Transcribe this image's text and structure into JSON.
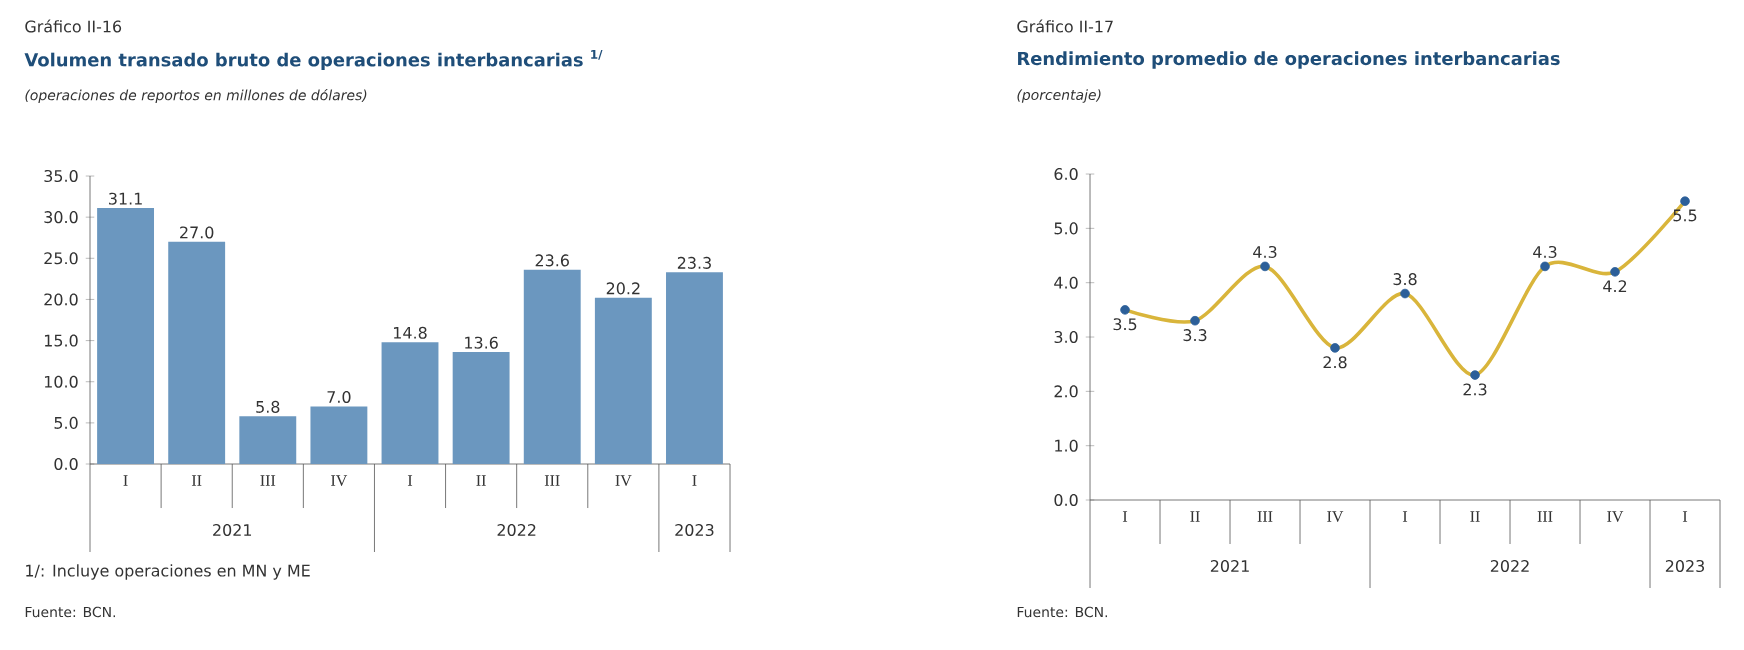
{
  "chart_data": [
    {
      "type": "bar",
      "title": "Volumen transado bruto de operaciones interbancarias $^{1/}$",
      "subtitle": "(operaciones de reportos en millones de dólares)",
      "categories": [
        "I",
        "II",
        "III",
        "IV",
        "I",
        "II",
        "III",
        "IV",
        "I"
      ],
      "values": [
        31.1,
        27.0,
        5.8,
        7.0,
        14.8,
        13.6,
        23.6,
        20.2,
        23.3
      ],
      "color": "#6b97bf",
      "value_labels": [
        "31.1",
        "27.0",
        "5.8",
        "7.0",
        "14.8",
        "13.6",
        "23.6",
        "20.2",
        "23.3"
      ],
      "ylim": [
        0,
        35
      ],
      "yticks": [
        {
          "value": 0,
          "label": "0.0"
        },
        {
          "value": 5,
          "label": "5.0"
        },
        {
          "value": 10,
          "label": "10.0"
        },
        {
          "value": 15,
          "label": "15.0"
        },
        {
          "value": 20,
          "label": "20.0"
        },
        {
          "value": 25,
          "label": "25.0"
        },
        {
          "value": 30,
          "label": "30.0"
        },
        {
          "value": 35,
          "label": "35.0"
        }
      ],
      "annotations": [
        "Gráfico II-16",
        "2021",
        "2022",
        "2023",
        "1/: Incluye operaciones en MN y ME",
        "Fuente: BCN."
      ]
    },
    {
      "type": "line",
      "title": "Rendimiento promedio de operaciones interbancarias",
      "subtitle": "(porcentaje)",
      "categories": [
        "I",
        "II",
        "III",
        "IV",
        "I",
        "II",
        "III",
        "IV",
        "I"
      ],
      "series": [
        {
          "color": "#d9b53b",
          "colors": [
            "#2c5f99",
            "#2c5f99",
            "#2c5f99",
            "#2c5f99",
            "#2c5f99",
            "#2c5f99",
            "#2c5f99",
            "#2c5f99",
            "#2c5f99"
          ],
          "values": [
            3.5,
            3.3,
            4.3,
            2.8,
            3.8,
            2.3,
            4.3,
            4.2,
            5.5
          ],
          "value_labels": [
            "3.5",
            "3.3",
            "4.3",
            "2.8",
            "3.8",
            "2.3",
            "4.3",
            "4.2",
            "5.5"
          ]
        }
      ],
      "marker": "circle",
      "line_style": "solid",
      "ylim": [
        0,
        6
      ],
      "yticks": [
        {
          "value": 0,
          "label": "0.0"
        },
        {
          "value": 1,
          "label": "1.0"
        },
        {
          "value": 2,
          "label": "2.0"
        },
        {
          "value": 3,
          "label": "3.0"
        },
        {
          "value": 4,
          "label": "4.0"
        },
        {
          "value": 5,
          "label": "5.0"
        },
        {
          "value": 6,
          "label": "6.0"
        }
      ],
      "annotations": [
        "Gráfico II-17",
        "2021",
        "2022",
        "2023",
        "Fuente: BCN."
      ]
    }
  ]
}
